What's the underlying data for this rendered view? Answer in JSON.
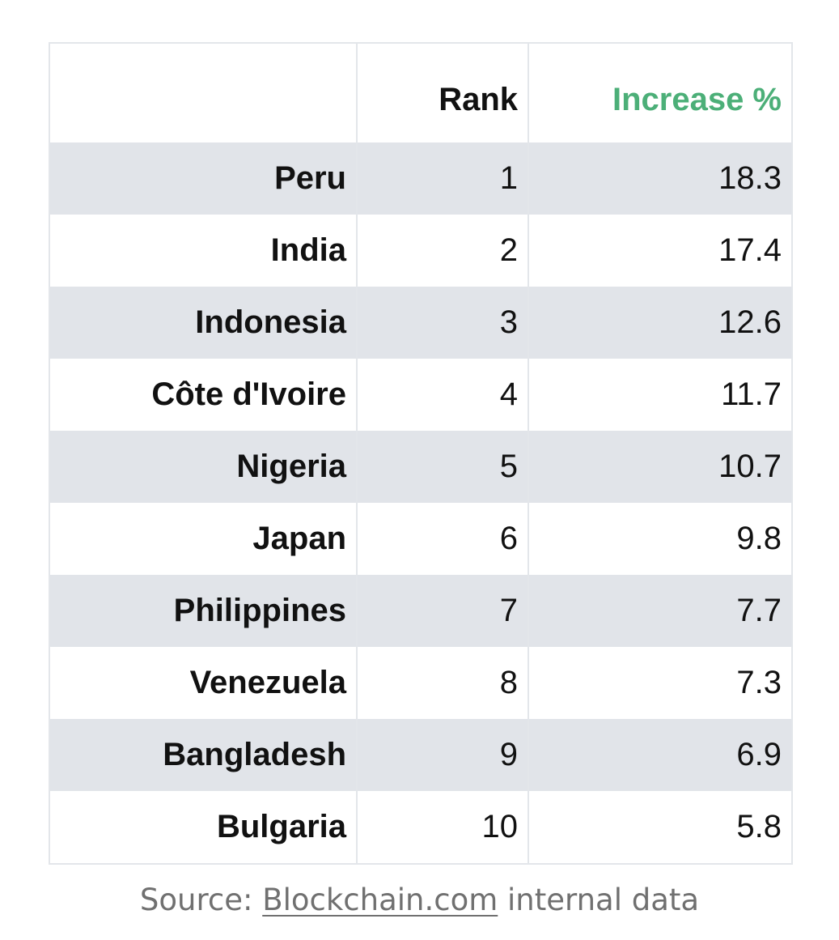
{
  "chart_data": {
    "type": "table",
    "columns": [
      "",
      "Rank",
      "Increase %"
    ],
    "rows": [
      {
        "country": "Peru",
        "rank": "1",
        "increase": "18.3"
      },
      {
        "country": "India",
        "rank": "2",
        "increase": "17.4"
      },
      {
        "country": "Indonesia",
        "rank": "3",
        "increase": "12.6"
      },
      {
        "country": "Côte d'Ivoire",
        "rank": "4",
        "increase": "11.7"
      },
      {
        "country": "Nigeria",
        "rank": "5",
        "increase": "10.7"
      },
      {
        "country": "Japan",
        "rank": "6",
        "increase": "9.8"
      },
      {
        "country": "Philippines",
        "rank": "7",
        "increase": "7.7"
      },
      {
        "country": "Venezuela",
        "rank": "8",
        "increase": "7.3"
      },
      {
        "country": "Bangladesh",
        "rank": "9",
        "increase": "6.9"
      },
      {
        "country": "Bulgaria",
        "rank": "10",
        "increase": "5.8"
      }
    ],
    "header_accent_color": "#4caf78"
  },
  "source": {
    "prefix": "Source: ",
    "link_text": "Blockchain.com",
    "suffix": " internal data"
  }
}
